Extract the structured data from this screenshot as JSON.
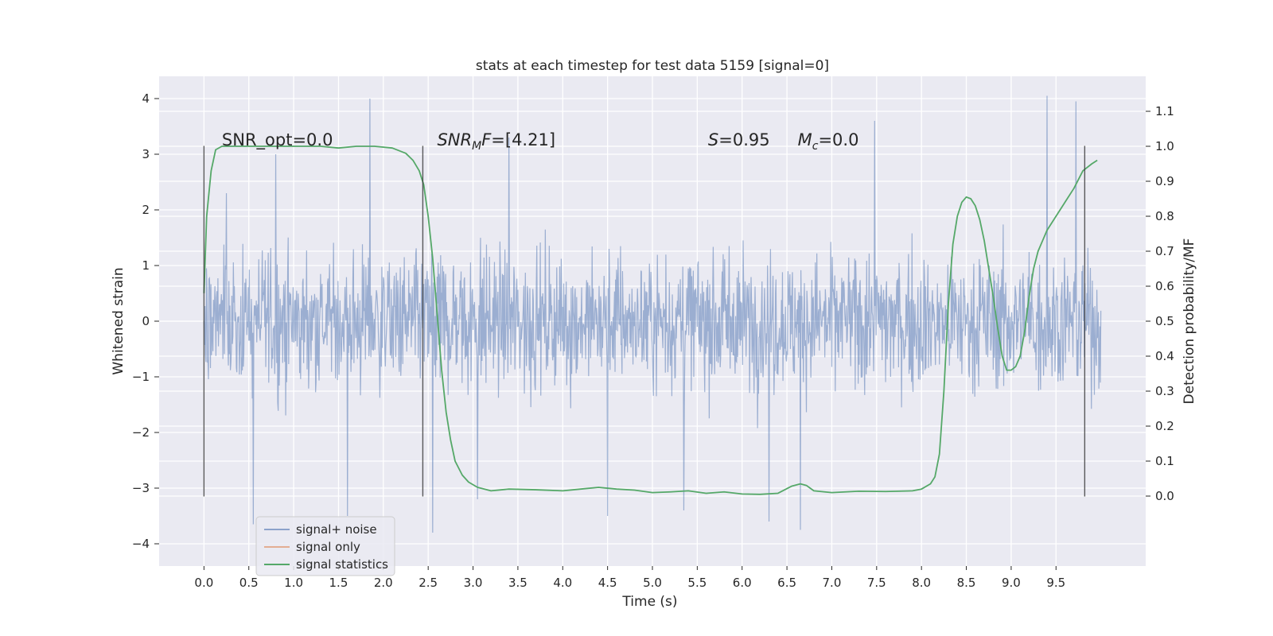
{
  "chart_data": {
    "type": "line",
    "title": "stats at each timestep for test data 5159 [signal=0]",
    "xlabel": "Time (s)",
    "ylabel": "Whitened strain",
    "y2label": "Detection probability/MF",
    "xlim": [
      -0.5,
      10.5
    ],
    "ylim": [
      -4.4,
      4.4
    ],
    "y2lim": [
      -0.2,
      1.2
    ],
    "x_ticks": [
      0.0,
      0.5,
      1.0,
      1.5,
      2.0,
      2.5,
      3.0,
      3.5,
      4.0,
      4.5,
      5.0,
      5.5,
      6.0,
      6.5,
      7.0,
      7.5,
      8.0,
      8.5,
      9.0,
      9.5
    ],
    "x_tick_labels": [
      "0.0",
      "0.5",
      "1.0",
      "1.5",
      "2.0",
      "2.5",
      "3.0",
      "3.5",
      "4.0",
      "4.5",
      "5.0",
      "5.5",
      "6.0",
      "6.5",
      "7.0",
      "7.5",
      "8.0",
      "8.5",
      "9.0",
      "9.5"
    ],
    "y_ticks": [
      -4,
      -3,
      -2,
      -1,
      0,
      1,
      2,
      3,
      4
    ],
    "y_tick_labels": [
      "−4",
      "−3",
      "−2",
      "−1",
      "0",
      "1",
      "2",
      "3",
      "4"
    ],
    "y2_ticks": [
      0.0,
      0.1,
      0.2,
      0.3,
      0.4,
      0.5,
      0.6,
      0.7,
      0.8,
      0.9,
      1.0,
      1.1
    ],
    "y2_tick_labels": [
      "0.0",
      "0.1",
      "0.2",
      "0.3",
      "0.4",
      "0.5",
      "0.6",
      "0.7",
      "0.8",
      "0.9",
      "1.0",
      "1.1"
    ],
    "grid": true,
    "legend_placement": "lower-left",
    "colors": {
      "noise": "#4c72b0",
      "signal": "#dd8452",
      "stats": "#55a868",
      "vlines": "#333333",
      "plot_bg": "#eaeaf2",
      "grid": "#ffffff"
    },
    "series": [
      {
        "name": "signal+ noise",
        "role": "noise",
        "x_range": [
          0.0,
          10.0
        ],
        "envelope": {
          "core_band": [
            -1.3,
            1.3
          ],
          "typical_peaks": [
            -2.5,
            2.5
          ],
          "extreme_peaks": [
            {
              "x": 0.25,
              "y": 2.3
            },
            {
              "x": 0.8,
              "y": 3.0
            },
            {
              "x": 1.85,
              "y": 4.0
            },
            {
              "x": 2.55,
              "y": -3.8
            },
            {
              "x": 3.05,
              "y": -3.2
            },
            {
              "x": 3.4,
              "y": 3.3
            },
            {
              "x": 4.5,
              "y": -3.5
            },
            {
              "x": 5.35,
              "y": -3.4
            },
            {
              "x": 6.3,
              "y": -3.6
            },
            {
              "x": 6.65,
              "y": -3.75
            },
            {
              "x": 7.48,
              "y": 3.6
            },
            {
              "x": 9.4,
              "y": 4.05
            },
            {
              "x": 9.72,
              "y": 3.95
            },
            {
              "x": 0.55,
              "y": -3.65
            },
            {
              "x": 1.6,
              "y": -3.5
            }
          ]
        }
      },
      {
        "name": "signal only",
        "role": "signal",
        "x": [],
        "y": []
      },
      {
        "name": "signal statistics",
        "role": "stats",
        "axis": "right",
        "x": [
          0.0,
          0.03,
          0.08,
          0.13,
          0.2,
          0.3,
          0.5,
          0.8,
          1.0,
          1.3,
          1.5,
          1.7,
          1.9,
          2.1,
          2.25,
          2.33,
          2.4,
          2.45,
          2.5,
          2.55,
          2.6,
          2.65,
          2.7,
          2.75,
          2.8,
          2.88,
          2.95,
          3.05,
          3.2,
          3.4,
          3.7,
          4.0,
          4.2,
          4.4,
          4.6,
          4.8,
          5.0,
          5.2,
          5.4,
          5.6,
          5.8,
          6.0,
          6.2,
          6.4,
          6.55,
          6.65,
          6.72,
          6.8,
          7.0,
          7.3,
          7.6,
          7.9,
          8.0,
          8.1,
          8.15,
          8.2,
          8.25,
          8.3,
          8.35,
          8.4,
          8.45,
          8.5,
          8.55,
          8.6,
          8.65,
          8.7,
          8.75,
          8.8,
          8.85,
          8.9,
          8.95,
          9.0,
          9.05,
          9.1,
          9.15,
          9.2,
          9.25,
          9.3,
          9.35,
          9.4,
          9.5,
          9.6,
          9.7,
          9.8,
          9.9,
          9.96
        ],
        "y": [
          0.58,
          0.8,
          0.93,
          0.99,
          1.0,
          1.0,
          1.0,
          1.0,
          1.0,
          1.0,
          0.995,
          1.0,
          1.0,
          0.995,
          0.98,
          0.96,
          0.93,
          0.89,
          0.8,
          0.68,
          0.52,
          0.36,
          0.24,
          0.16,
          0.1,
          0.06,
          0.04,
          0.025,
          0.015,
          0.02,
          0.018,
          0.015,
          0.02,
          0.025,
          0.02,
          0.017,
          0.01,
          0.012,
          0.015,
          0.008,
          0.012,
          0.006,
          0.005,
          0.008,
          0.028,
          0.035,
          0.03,
          0.015,
          0.01,
          0.014,
          0.013,
          0.015,
          0.02,
          0.035,
          0.055,
          0.12,
          0.3,
          0.55,
          0.72,
          0.8,
          0.84,
          0.855,
          0.85,
          0.83,
          0.79,
          0.73,
          0.65,
          0.57,
          0.48,
          0.4,
          0.36,
          0.36,
          0.37,
          0.4,
          0.47,
          0.57,
          0.65,
          0.7,
          0.73,
          0.76,
          0.8,
          0.84,
          0.88,
          0.93,
          0.95,
          0.96
        ]
      }
    ],
    "vlines": [
      {
        "x": 0.0,
        "ymin": -3.15,
        "ymax": 3.15
      },
      {
        "x": 2.44,
        "ymin": -3.15,
        "ymax": 3.15
      },
      {
        "x": 9.82,
        "ymin": -3.15,
        "ymax": 3.15
      }
    ],
    "annotations": [
      {
        "x": 0.2,
        "y": 3.16,
        "parts": [
          {
            "t": "SNR_opt=0.0"
          }
        ]
      },
      {
        "x": 2.6,
        "y": 3.16,
        "parts": [
          {
            "t": "SNR",
            "i": true
          },
          {
            "t": "M",
            "i": true,
            "sub": true
          },
          {
            "t": "F",
            "i": true
          },
          {
            "t": "=[4.21]"
          }
        ]
      },
      {
        "x": 5.62,
        "y": 3.16,
        "parts": [
          {
            "t": "S",
            "i": true
          },
          {
            "t": "=0.95"
          }
        ]
      },
      {
        "x": 6.62,
        "y": 3.16,
        "parts": [
          {
            "t": "M",
            "i": true
          },
          {
            "t": "c",
            "i": true,
            "sub": true
          },
          {
            "t": "=0.0"
          }
        ]
      }
    ],
    "legend": [
      "signal+ noise",
      "signal only",
      "signal statistics"
    ]
  }
}
